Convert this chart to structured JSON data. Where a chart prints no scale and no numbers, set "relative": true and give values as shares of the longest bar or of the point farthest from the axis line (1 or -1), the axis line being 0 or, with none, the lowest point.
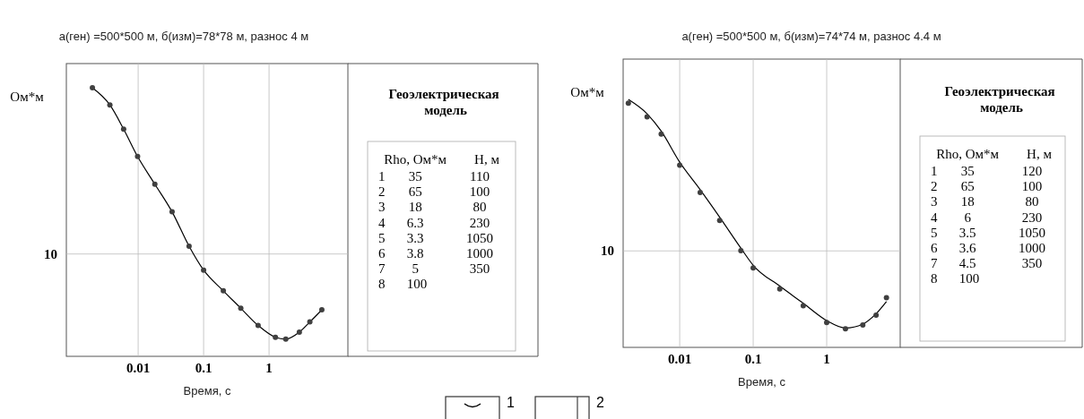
{
  "chart_data": [
    {
      "type": "line",
      "title": "а(ген) =500*500 м, б(изм)=78*78 м, разнос 4 м",
      "xlabel": "Время, с",
      "ylabel": "Ом*м",
      "relative": true,
      "log": "x",
      "xlim": [
        0.0008,
        16
      ],
      "xticks": [
        0.01,
        0.1,
        1
      ],
      "grid": true,
      "legend": "bottom",
      "ref_lines": [
        {
          "axis": "y",
          "value": 0.381
        }
      ],
      "annotations": [
        "10",
        "Геоэлектрическая модель",
        "Rho, Ом*м  H, м",
        "1  35  110",
        "2  65  100",
        "3  18  80",
        "4  6.3  230",
        "5  3.3  1050",
        "6  3.8  1000",
        "7  5  350",
        "8  100"
      ],
      "x": [
        0.002,
        0.0037,
        0.006,
        0.0098,
        0.018,
        0.033,
        0.06,
        0.1,
        0.2,
        0.37,
        0.68,
        1.25,
        1.8,
        2.9,
        4.2,
        6.4
      ],
      "series": [
        {
          "name": "1",
          "type": "line",
          "color": "#000000",
          "values": [
            1,
            0.936,
            0.846,
            0.744,
            0.641,
            0.538,
            0.41,
            0.321,
            0.244,
            0.179,
            0.115,
            0.071,
            0.064,
            0.09,
            0.128,
            0.173
          ]
        },
        {
          "name": "2",
          "type": "scatter",
          "marker": "circle",
          "color": "#404040",
          "values": [
            1,
            0.936,
            0.846,
            0.744,
            0.641,
            0.538,
            0.41,
            0.321,
            0.244,
            0.179,
            0.115,
            0.071,
            0.064,
            0.09,
            0.128,
            0.173
          ]
        }
      ]
    },
    {
      "type": "line",
      "title": "а(ген) =500*500 м, б(изм)=74*74 м, разнос 4.4 м",
      "xlabel": "Время, с",
      "ylabel": "Ом*м",
      "relative": true,
      "log": "x",
      "xlim": [
        0.0017,
        10
      ],
      "xticks": [
        0.01,
        0.1,
        1
      ],
      "grid": true,
      "ref_lines": [
        {
          "axis": "y",
          "value": 0.389
        }
      ],
      "annotations": [
        "10",
        "Геоэлектрическая модель",
        "Rho, Ом*м  H, м",
        "1  35  120",
        "2  65  100",
        "3  18  80",
        "4  6  230",
        "5  3.5  1050",
        "6  3.6  1000",
        "7  4.5  350",
        "8  100"
      ],
      "x": [
        0.002,
        0.0036,
        0.0056,
        0.01,
        0.019,
        0.035,
        0.068,
        0.1,
        0.23,
        0.48,
        1,
        1.8,
        3.1,
        4.7,
        6.5
      ],
      "series": [
        {
          "type": "line",
          "color": "#000000",
          "values": [
            1,
            0.942,
            0.872,
            0.747,
            0.636,
            0.525,
            0.4,
            0.331,
            0.247,
            0.178,
            0.108,
            0.078,
            0.094,
            0.136,
            0.185
          ]
        },
        {
          "type": "scatter",
          "marker": "circle",
          "color": "#404040",
          "values": [
            0.985,
            0.93,
            0.86,
            0.735,
            0.625,
            0.512,
            0.39,
            0.32,
            0.236,
            0.168,
            0.1,
            0.075,
            0.09,
            0.13,
            0.2
          ]
        }
      ]
    }
  ]
}
